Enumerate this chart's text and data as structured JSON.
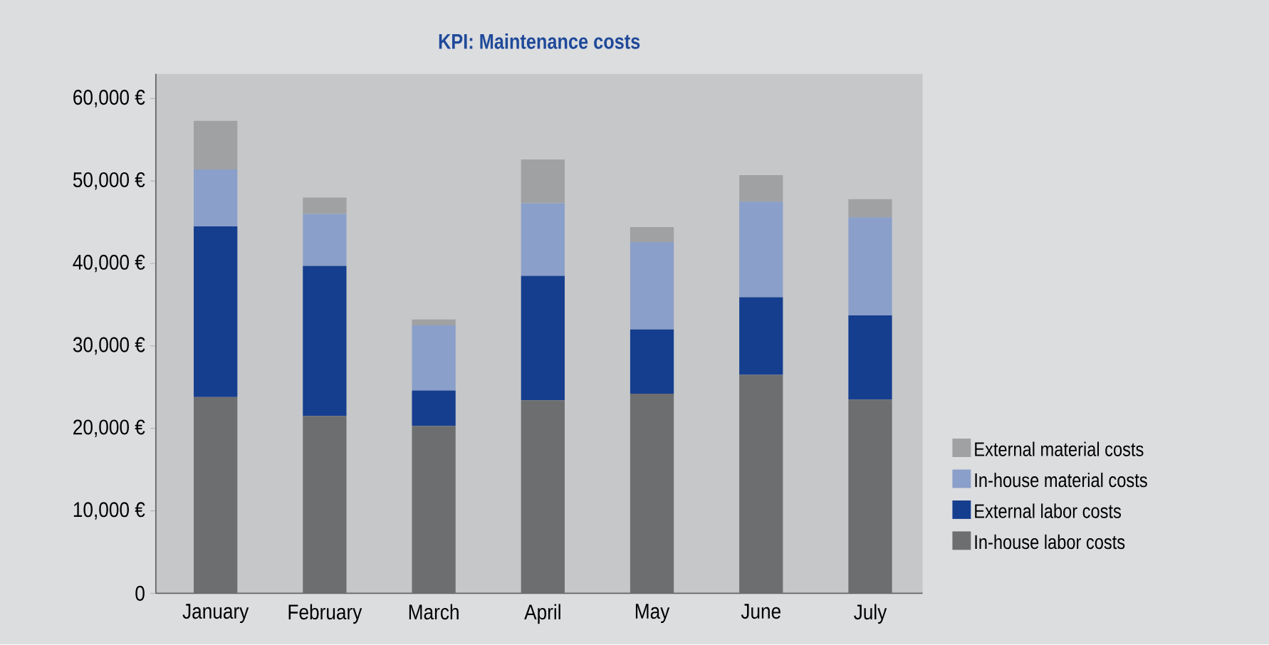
{
  "chart_data": {
    "type": "bar",
    "title": "KPI: Maintenance costs",
    "stacked": true,
    "categories": [
      "January",
      "February",
      "March",
      "April",
      "May",
      "June",
      "July"
    ],
    "series": [
      {
        "name": "In-house labor costs",
        "color": "#6d6e70",
        "values": [
          23800,
          21500,
          20300,
          23400,
          24200,
          26500,
          23500
        ]
      },
      {
        "name": "External labor costs",
        "color": "#153e8f",
        "values": [
          20700,
          18200,
          4300,
          15100,
          7800,
          9400,
          10200
        ]
      },
      {
        "name": "In-house material costs",
        "color": "#8a9fc9",
        "values": [
          6900,
          6300,
          7900,
          8800,
          10600,
          11600,
          11900
        ]
      },
      {
        "name": "External material costs",
        "color": "#a0a1a3",
        "values": [
          5900,
          2000,
          700,
          5300,
          1800,
          3200,
          2200
        ]
      }
    ],
    "ylim": [
      0,
      63000
    ],
    "yticks": [
      0,
      {
        "value": 10000,
        "label": "10,000 €"
      },
      {
        "value": 20000,
        "label": "20,000 €"
      },
      {
        "value": 30000,
        "label": "30,000 €"
      },
      {
        "value": 40000,
        "label": "40,000 €"
      },
      {
        "value": 50000,
        "label": "50,000 €"
      },
      {
        "value": 60000,
        "label": "60,000 €"
      }
    ],
    "grid": false,
    "legend": "right"
  }
}
